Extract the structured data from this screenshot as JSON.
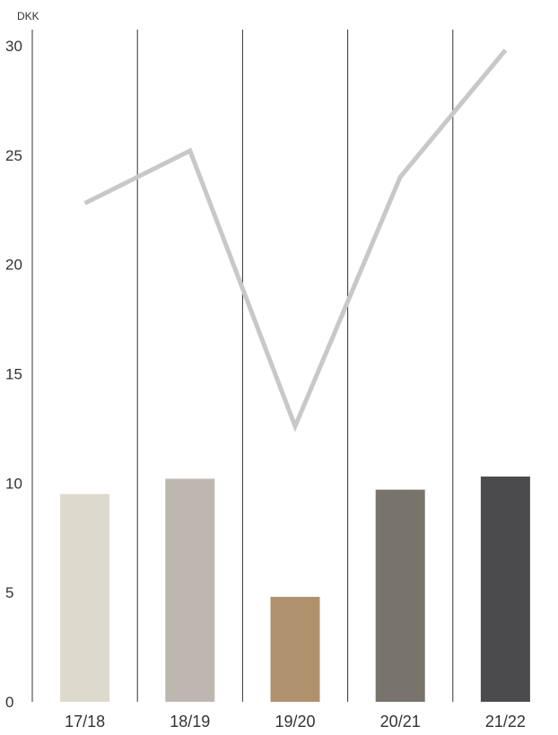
{
  "chart_data": {
    "type": "bar",
    "unit_label": "DKK",
    "categories": [
      "17/18",
      "18/19",
      "19/20",
      "20/21",
      "21/22"
    ],
    "series": [
      {
        "type": "bar",
        "values": [
          9.5,
          10.2,
          4.8,
          9.7,
          10.3
        ],
        "colors": [
          "#ded9cd",
          "#bdb7b0",
          "#b0916d",
          "#78746c",
          "#4b4b4d"
        ]
      },
      {
        "type": "line",
        "values": [
          22.8,
          25.2,
          12.6,
          24.0,
          29.8
        ],
        "color": "#c8c8c8"
      }
    ],
    "ylim": [
      0,
      30
    ],
    "yticks": [
      0,
      5,
      10,
      15,
      20,
      25,
      30
    ],
    "grid": false,
    "category_separators": true,
    "legend": "none"
  }
}
